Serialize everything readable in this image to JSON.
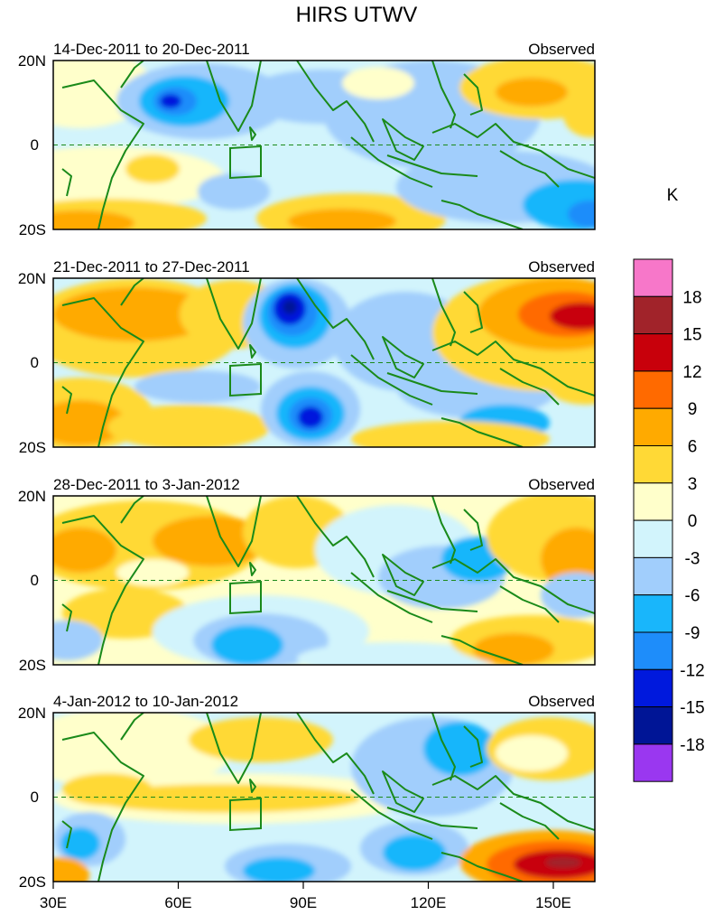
{
  "title": "HIRS UTWV",
  "unit_label": "K",
  "colorbar": {
    "labels": [
      "18",
      "15",
      "12",
      "9",
      "6",
      "3",
      "0",
      "-3",
      "-6",
      "-9",
      "-12",
      "-15",
      "-18"
    ],
    "colors": [
      "#f777c9",
      "#a1232a",
      "#c8000b",
      "#ff6a00",
      "#ffaa00",
      "#ffd936",
      "#ffffcb",
      "#d2f4fc",
      "#a1cefc",
      "#19b6fb",
      "#1e8dfa",
      "#0019dd",
      "#001596",
      "#9a37f0"
    ]
  },
  "panels": [
    {
      "date_range": "14-Dec-2011 to 20-Dec-2011",
      "status": "Observed",
      "lat_labels": [
        "20N",
        "0",
        "20S"
      ]
    },
    {
      "date_range": "21-Dec-2011 to 27-Dec-2011",
      "status": "Observed",
      "lat_labels": [
        "20N",
        "0",
        "20S"
      ]
    },
    {
      "date_range": "28-Dec-2011 to 3-Jan-2012",
      "status": "Observed",
      "lat_labels": [
        "20N",
        "0",
        "20S"
      ]
    },
    {
      "date_range": "4-Jan-2012 to 10-Jan-2012",
      "status": "Observed",
      "lat_labels": [
        "20N",
        "0",
        "20S"
      ]
    }
  ],
  "lon_labels": [
    "30E",
    "60E",
    "90E",
    "120E",
    "150E"
  ],
  "colors": {
    "coastline": "#1a8a1a",
    "frame": "#000000"
  }
}
